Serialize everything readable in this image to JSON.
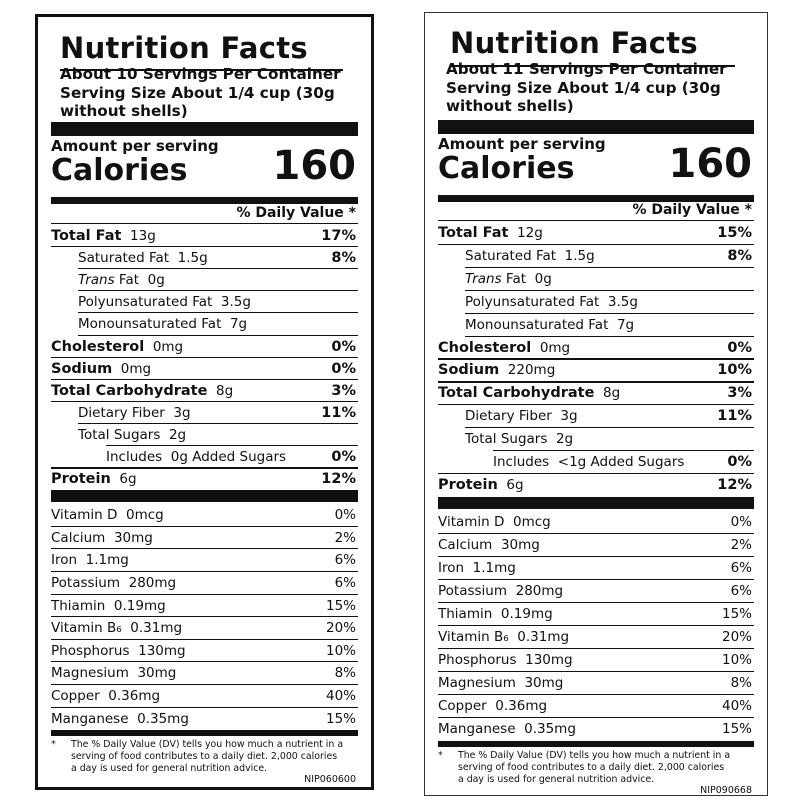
{
  "labels": [
    {
      "title": "Nutrition Facts",
      "servings_per_container": "About 10 Servings Per Container",
      "serving_size_line1": "Serving Size About 1/4 cup (30g",
      "serving_size_line2": "without shells)",
      "amount_per_serving": "Amount per serving",
      "calories_label": "Calories",
      "calories_value": "160",
      "daily_value_header": "% Daily Value *",
      "nutrients": [
        {
          "name": "Total Fat",
          "amount": "13g",
          "dv": "17%"
        },
        {
          "name": "Saturated Fat",
          "amount": "1.5g",
          "dv": "8%"
        },
        {
          "name": "Trans",
          "name_suffix": " Fat",
          "amount": "0g",
          "dv": ""
        },
        {
          "name": "Polyunsaturated Fat",
          "amount": "3.5g",
          "dv": ""
        },
        {
          "name": "Monounsaturated Fat",
          "amount": "7g",
          "dv": ""
        },
        {
          "name": "Cholesterol",
          "amount": "0mg",
          "dv": "0%"
        },
        {
          "name": "Sodium",
          "amount": "0mg",
          "dv": "0%"
        },
        {
          "name": "Total Carbohydrate",
          "amount": "8g",
          "dv": "3%"
        },
        {
          "name": "Dietary Fiber",
          "amount": "3g",
          "dv": "11%"
        },
        {
          "name": "Total Sugars",
          "amount": "2g",
          "dv": ""
        },
        {
          "name": "Includes",
          "amount": "0g Added Sugars",
          "dv": "0%"
        },
        {
          "name": "Protein",
          "amount": "6g",
          "dv": "12%"
        }
      ],
      "vitamins": [
        {
          "name": "Vitamin D",
          "amount": "0mcg",
          "dv": "0%"
        },
        {
          "name": "Calcium",
          "amount": "30mg",
          "dv": "2%"
        },
        {
          "name": "Iron",
          "amount": "1.1mg",
          "dv": "6%"
        },
        {
          "name": "Potassium",
          "amount": "280mg",
          "dv": "6%"
        },
        {
          "name": "Thiamin",
          "amount": "0.19mg",
          "dv": "15%"
        },
        {
          "name": "Vitamin B₆",
          "amount": "0.31mg",
          "dv": "20%"
        },
        {
          "name": "Phosphorus",
          "amount": "130mg",
          "dv": "10%"
        },
        {
          "name": "Magnesium",
          "amount": "30mg",
          "dv": "8%"
        },
        {
          "name": "Copper",
          "amount": "0.36mg",
          "dv": "40%"
        },
        {
          "name": "Manganese",
          "amount": "0.35mg",
          "dv": "15%"
        }
      ],
      "footnote_star": "*",
      "footnote_line1": "The % Daily Value (DV) tells you how much a nutrient in a",
      "footnote_line2": "serving of food contributes to a daily diet. 2,000 calories",
      "footnote_line3": "a day is used for general nutrition advice.",
      "code": "NIP060600"
    },
    {
      "title": "Nutrition Facts",
      "servings_per_container": "About 11 Servings Per Container",
      "serving_size_line1": "Serving Size About 1/4 cup (30g",
      "serving_size_line2": "without shells)",
      "amount_per_serving": "Amount per serving",
      "calories_label": "Calories",
      "calories_value": "160",
      "daily_value_header": "% Daily Value *",
      "nutrients": [
        {
          "name": "Total Fat",
          "amount": "12g",
          "dv": "15%"
        },
        {
          "name": "Saturated Fat",
          "amount": "1.5g",
          "dv": "8%"
        },
        {
          "name": "Trans",
          "name_suffix": " Fat",
          "amount": "0g",
          "dv": ""
        },
        {
          "name": "Polyunsaturated Fat",
          "amount": "3.5g",
          "dv": ""
        },
        {
          "name": "Monounsaturated Fat",
          "amount": "7g",
          "dv": ""
        },
        {
          "name": "Cholesterol",
          "amount": "0mg",
          "dv": "0%"
        },
        {
          "name": "Sodium",
          "amount": "220mg",
          "dv": "10%"
        },
        {
          "name": "Total Carbohydrate",
          "amount": "8g",
          "dv": "3%"
        },
        {
          "name": "Dietary Fiber",
          "amount": "3g",
          "dv": "11%"
        },
        {
          "name": "Total Sugars",
          "amount": "2g",
          "dv": ""
        },
        {
          "name": "Includes",
          "amount": "<1g Added Sugars",
          "dv": "0%"
        },
        {
          "name": "Protein",
          "amount": "6g",
          "dv": "12%"
        }
      ],
      "vitamins": [
        {
          "name": "Vitamin D",
          "amount": "0mcg",
          "dv": "0%"
        },
        {
          "name": "Calcium",
          "amount": "30mg",
          "dv": "2%"
        },
        {
          "name": "Iron",
          "amount": "1.1mg",
          "dv": "6%"
        },
        {
          "name": "Potassium",
          "amount": "280mg",
          "dv": "6%"
        },
        {
          "name": "Thiamin",
          "amount": "0.19mg",
          "dv": "15%"
        },
        {
          "name": "Vitamin B₆",
          "amount": "0.31mg",
          "dv": "20%"
        },
        {
          "name": "Phosphorus",
          "amount": "130mg",
          "dv": "10%"
        },
        {
          "name": "Magnesium",
          "amount": "30mg",
          "dv": "8%"
        },
        {
          "name": "Copper",
          "amount": "0.36mg",
          "dv": "40%"
        },
        {
          "name": "Manganese",
          "amount": "0.35mg",
          "dv": "15%"
        }
      ],
      "footnote_star": "*",
      "footnote_line1": "The % Daily Value (DV) tells you how much a nutrient in a",
      "footnote_line2": "serving of food contributes to a daily diet. 2,000 calories",
      "footnote_line3": "a day is used for general nutrition advice.",
      "code": "NIP090668"
    }
  ]
}
